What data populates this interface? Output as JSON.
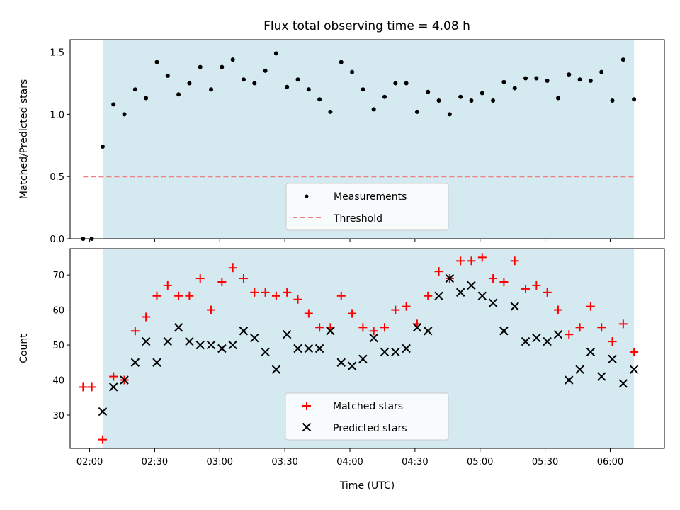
{
  "title": "Flux total observing time = 4.08 h",
  "xlabel": "Time (UTC)",
  "x_ticks": [
    "02:00",
    "02:30",
    "03:00",
    "03:30",
    "04:00",
    "04:30",
    "05:00",
    "05:30",
    "06:00"
  ],
  "colors": {
    "observing_window": "#d4e9f0",
    "threshold": "#f08080",
    "matched": "#ff0000",
    "predicted": "#000000",
    "measurement": "#000000"
  },
  "chart_data": [
    {
      "type": "scatter",
      "ylabel": "Matched/Predicted stars",
      "y_ticks": [
        "0.0",
        "0.5",
        "1.0",
        "1.5"
      ],
      "xlim": [
        "01:51",
        "06:25"
      ],
      "ylim": [
        0,
        1.6
      ],
      "observing_window": [
        "02:06",
        "06:11"
      ],
      "threshold": {
        "value": 0.5,
        "x_range": [
          "01:57",
          "06:11"
        ]
      },
      "legend": {
        "position": "lower center",
        "entries": [
          "Measurements",
          "Threshold"
        ]
      },
      "series": [
        {
          "name": "Measurements",
          "marker": "dot",
          "x": [
            "01:57",
            "02:01",
            "02:06",
            "02:11",
            "02:16",
            "02:21",
            "02:26",
            "02:31",
            "02:36",
            "02:41",
            "02:46",
            "02:51",
            "02:56",
            "03:01",
            "03:06",
            "03:11",
            "03:16",
            "03:21",
            "03:26",
            "03:31",
            "03:36",
            "03:41",
            "03:46",
            "03:51",
            "03:56",
            "04:01",
            "04:06",
            "04:11",
            "04:16",
            "04:21",
            "04:26",
            "04:31",
            "04:36",
            "04:41",
            "04:46",
            "04:51",
            "04:56",
            "05:01",
            "05:06",
            "05:11",
            "05:16",
            "05:21",
            "05:26",
            "05:31",
            "05:36",
            "05:41",
            "05:46",
            "05:51",
            "05:56",
            "06:01",
            "06:06",
            "06:11"
          ],
          "y": [
            0.0,
            0.0,
            0.74,
            1.08,
            1.0,
            1.2,
            1.13,
            1.42,
            1.31,
            1.16,
            1.25,
            1.38,
            1.2,
            1.38,
            1.44,
            1.28,
            1.25,
            1.35,
            1.49,
            1.22,
            1.28,
            1.2,
            1.12,
            1.02,
            1.42,
            1.34,
            1.2,
            1.04,
            1.14,
            1.25,
            1.25,
            1.02,
            1.18,
            1.11,
            1.0,
            1.14,
            1.11,
            1.17,
            1.11,
            1.26,
            1.21,
            1.29,
            1.29,
            1.27,
            1.13,
            1.32,
            1.28,
            1.27,
            1.34,
            1.11,
            1.44,
            1.12
          ]
        }
      ]
    },
    {
      "type": "scatter",
      "ylabel": "Count",
      "y_ticks": [
        "30",
        "40",
        "50",
        "60",
        "70"
      ],
      "xlim": [
        "01:51",
        "06:25"
      ],
      "ylim": [
        20.5,
        77.5
      ],
      "observing_window": [
        "02:06",
        "06:11"
      ],
      "legend": {
        "position": "lower center",
        "entries": [
          "Matched stars",
          "Predicted stars"
        ]
      },
      "series": [
        {
          "name": "Matched stars",
          "marker": "plus",
          "x": [
            "01:57",
            "02:01",
            "02:06",
            "02:11",
            "02:16",
            "02:21",
            "02:26",
            "02:31",
            "02:36",
            "02:41",
            "02:46",
            "02:51",
            "02:56",
            "03:01",
            "03:06",
            "03:11",
            "03:16",
            "03:21",
            "03:26",
            "03:31",
            "03:36",
            "03:41",
            "03:46",
            "03:51",
            "03:56",
            "04:01",
            "04:06",
            "04:11",
            "04:16",
            "04:21",
            "04:26",
            "04:31",
            "04:36",
            "04:41",
            "04:46",
            "04:51",
            "04:56",
            "05:01",
            "05:06",
            "05:11",
            "05:16",
            "05:21",
            "05:26",
            "05:31",
            "05:36",
            "05:41",
            "05:46",
            "05:51",
            "05:56",
            "06:01",
            "06:06",
            "06:11"
          ],
          "y": [
            38,
            38,
            23,
            41,
            40,
            54,
            58,
            64,
            67,
            64,
            64,
            69,
            60,
            68,
            72,
            69,
            65,
            65,
            64,
            65,
            63,
            59,
            55,
            55,
            64,
            59,
            55,
            54,
            55,
            60,
            61,
            56,
            64,
            71,
            69,
            74,
            74,
            75,
            69,
            68,
            74,
            66,
            67,
            65,
            60,
            53,
            55,
            61,
            55,
            51,
            56,
            48
          ]
        },
        {
          "name": "Predicted stars",
          "marker": "x",
          "x": [
            "02:06",
            "02:11",
            "02:16",
            "02:21",
            "02:26",
            "02:31",
            "02:36",
            "02:41",
            "02:46",
            "02:51",
            "02:56",
            "03:01",
            "03:06",
            "03:11",
            "03:16",
            "03:21",
            "03:26",
            "03:31",
            "03:36",
            "03:41",
            "03:46",
            "03:51",
            "03:56",
            "04:01",
            "04:06",
            "04:11",
            "04:16",
            "04:21",
            "04:26",
            "04:31",
            "04:36",
            "04:41",
            "04:46",
            "04:51",
            "04:56",
            "05:01",
            "05:06",
            "05:11",
            "05:16",
            "05:21",
            "05:26",
            "05:31",
            "05:36",
            "05:41",
            "05:46",
            "05:51",
            "05:56",
            "06:01",
            "06:06",
            "06:11"
          ],
          "y": [
            31,
            38,
            40,
            45,
            51,
            45,
            51,
            55,
            51,
            50,
            50,
            49,
            50,
            54,
            52,
            48,
            43,
            53,
            49,
            49,
            49,
            54,
            45,
            44,
            46,
            52,
            48,
            48,
            49,
            55,
            54,
            64,
            69,
            65,
            67,
            64,
            62,
            54,
            61,
            51,
            52,
            51,
            53,
            40,
            43,
            48,
            41,
            46,
            39,
            43
          ]
        }
      ]
    }
  ]
}
